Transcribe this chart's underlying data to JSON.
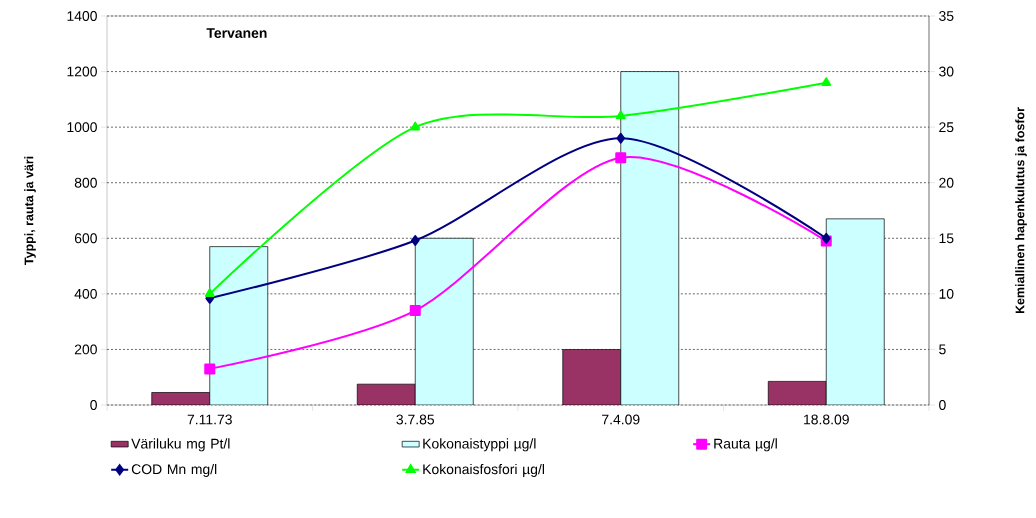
{
  "chart_data": {
    "type": "bar",
    "title": "Tervanen",
    "ylabel": "Typpi, rauta ja väri",
    "y2label": "Kemiallinen hapenkulutus ja fosfor",
    "categories": [
      "7.11.73",
      "3.7.85",
      "7.4.09",
      "18.8.09"
    ],
    "series": [
      {
        "name": "Väriluku mg Pt/l",
        "color": "#993366",
        "values": [
          45,
          75,
          200,
          85
        ]
      },
      {
        "name": "Kokonaistyppi µg/l",
        "color": "#ccffff",
        "values": [
          570,
          600,
          1200,
          670
        ]
      },
      {
        "name": "Rauta µg/l",
        "type": "line",
        "color": "#ff00ff",
        "marker": "square",
        "values": [
          130,
          340,
          890,
          590
        ]
      },
      {
        "name": "COD Mn mg/l",
        "type": "line",
        "axis": "y2",
        "color": "#000080",
        "marker": "diamond",
        "values": [
          9.6,
          14.8,
          24,
          15
        ]
      },
      {
        "name": "Kokonaisfosfori µg/l",
        "type": "line",
        "axis": "y2",
        "color": "#00ff00",
        "marker": "triangle",
        "values": [
          10,
          25,
          26,
          29
        ]
      }
    ],
    "ylim": [
      0,
      1400
    ],
    "yticks": [
      0,
      200,
      400,
      600,
      800,
      1000,
      1200,
      1400
    ],
    "y2lim": [
      0,
      35
    ],
    "y2ticks": [
      0,
      5,
      10,
      15,
      20,
      25,
      30,
      35
    ],
    "grid": "y",
    "legend": "bottom"
  }
}
